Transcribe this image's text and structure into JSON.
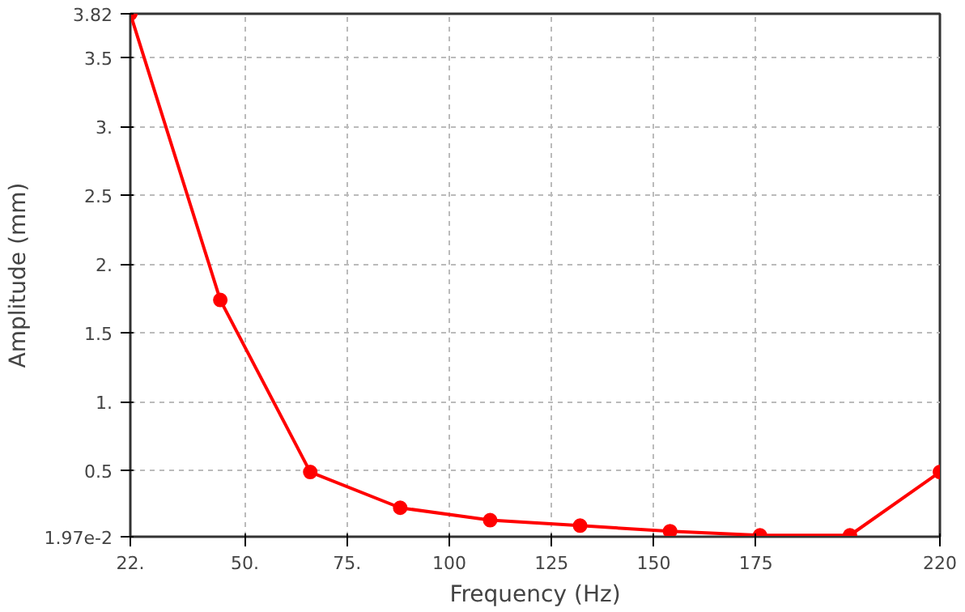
{
  "chart_data": {
    "type": "line",
    "xlabel": "Frequency (Hz)",
    "ylabel": "Amplitude (mm)",
    "x": [
      22,
      44,
      66,
      88,
      110,
      132,
      154,
      176,
      198,
      220
    ],
    "series": [
      {
        "color": "#ff0000",
        "values": [
          3.82,
          1.74,
          0.49,
          0.23,
          0.14,
          0.1,
          0.06,
          0.03,
          0.03,
          0.49
        ]
      }
    ],
    "xlim": [
      22,
      220
    ],
    "ylim": [
      0.0197,
      3.82
    ],
    "xticks": [
      {
        "value": 22,
        "label": "22."
      },
      {
        "value": 50,
        "label": "50."
      },
      {
        "value": 75,
        "label": "75."
      },
      100,
      125,
      150,
      175,
      220
    ],
    "yticks": [
      {
        "value": 0.0197,
        "label": "1.97e-2"
      },
      0.5,
      {
        "value": 1,
        "label": "1."
      },
      1.5,
      {
        "value": 2,
        "label": "2."
      },
      2.5,
      {
        "value": 3,
        "label": "3."
      },
      3.5,
      3.82
    ],
    "grid": true,
    "marker": "circle",
    "line_style": "solid"
  }
}
